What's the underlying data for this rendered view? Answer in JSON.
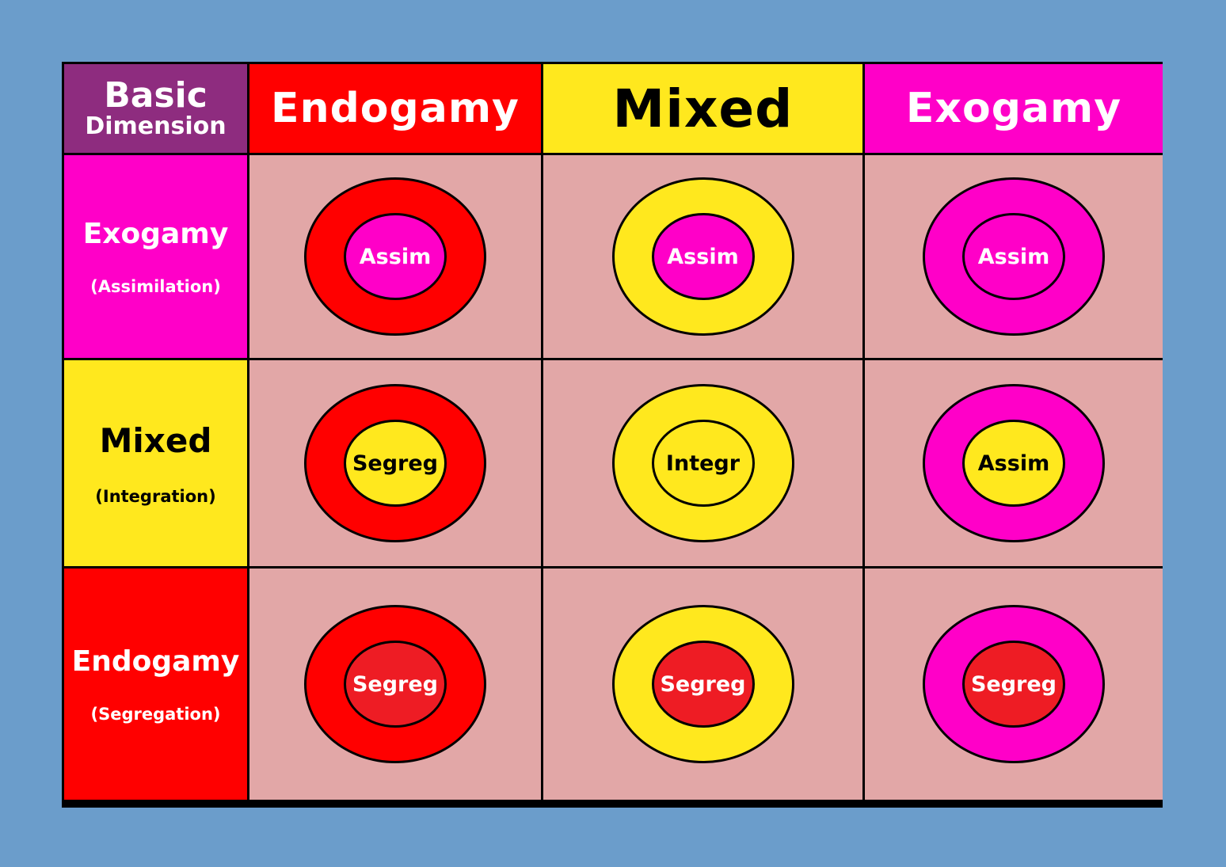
{
  "colors": {
    "background": "#6b9dcb",
    "cell_background": "#e2a7a7",
    "corner": "#8e2c7f",
    "endogamy": "#ff0000",
    "mixed": "#ffe81e",
    "exogamy": "#ff00c8",
    "segregation_core": "#ee1c24"
  },
  "corner": {
    "line1": "Basic",
    "line2": "Dimension"
  },
  "columns": [
    {
      "label": "Endogamy",
      "color": "#ff0000"
    },
    {
      "label": "Mixed",
      "color": "#ffe81e"
    },
    {
      "label": "Exogamy",
      "color": "#ff00c8"
    }
  ],
  "rows": [
    {
      "label": "Exogamy",
      "sublabel": "(Assimilation)",
      "color": "#ff00c8"
    },
    {
      "label": "Mixed",
      "sublabel": "(Integration)",
      "color": "#ffe81e"
    },
    {
      "label": "Endogamy",
      "sublabel": "(Segregation)",
      "color": "#ff0000"
    }
  ],
  "cells": [
    [
      {
        "label": "Assim",
        "ring_color": "#ff0000",
        "core_color": "#ff00c8"
      },
      {
        "label": "Assim",
        "ring_color": "#ffe81e",
        "core_color": "#ff00c8"
      },
      {
        "label": "Assim",
        "ring_color": "#ff00c8",
        "core_color": "#ff00c8"
      }
    ],
    [
      {
        "label": "Segreg",
        "ring_color": "#ff0000",
        "core_color": "#ffe81e"
      },
      {
        "label": "Integr",
        "ring_color": "#ffe81e",
        "core_color": "#ffe81e"
      },
      {
        "label": "Assim",
        "ring_color": "#ff00c8",
        "core_color": "#ffe81e"
      }
    ],
    [
      {
        "label": "Segreg",
        "ring_color": "#ff0000",
        "core_color": "#ee1c24"
      },
      {
        "label": "Segreg",
        "ring_color": "#ffe81e",
        "core_color": "#ee1c24"
      },
      {
        "label": "Segreg",
        "ring_color": "#ff00c8",
        "core_color": "#ee1c24"
      }
    ]
  ]
}
